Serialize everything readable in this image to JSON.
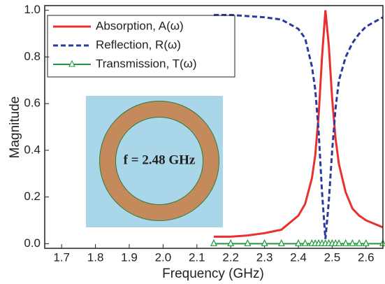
{
  "chart_data": {
    "type": "line",
    "xlabel": "Frequency (GHz)",
    "ylabel": "Magnitude",
    "annotation": "f = 2.48 GHz",
    "x": [
      2.15,
      2.2,
      2.25,
      2.3,
      2.35,
      2.4,
      2.42,
      2.44,
      2.45,
      2.46,
      2.47,
      2.48,
      2.49,
      2.5,
      2.51,
      2.52,
      2.54,
      2.56,
      2.58,
      2.6,
      2.65
    ],
    "series": [
      {
        "name": "Absorption, A(ω)",
        "color": "#e8312f",
        "style": "solid",
        "values": [
          0.03,
          0.03,
          0.035,
          0.045,
          0.06,
          0.12,
          0.17,
          0.28,
          0.38,
          0.55,
          0.8,
          1.0,
          0.85,
          0.62,
          0.45,
          0.34,
          0.22,
          0.15,
          0.12,
          0.1,
          0.07
        ]
      },
      {
        "name": "Reflection, R(ω)",
        "color": "#2b3a9e",
        "style": "dashed",
        "values": [
          0.98,
          0.98,
          0.975,
          0.97,
          0.96,
          0.92,
          0.88,
          0.76,
          0.66,
          0.48,
          0.22,
          0.02,
          0.18,
          0.4,
          0.58,
          0.7,
          0.8,
          0.86,
          0.9,
          0.93,
          0.97
        ]
      },
      {
        "name": "Transmission, T(ω)",
        "color": "#1f9a3a",
        "style": "triangle",
        "values": [
          0,
          0,
          0,
          0,
          0,
          0,
          0,
          0,
          0,
          0,
          0,
          0,
          0,
          0,
          0,
          0,
          0,
          0,
          0,
          0,
          0
        ]
      }
    ],
    "xlim": [
      1.65,
      2.65
    ],
    "ylim": [
      -0.02,
      1.02
    ],
    "xticks": [
      1.7,
      1.8,
      1.9,
      {
        "value": 2.0,
        "label": "2.0"
      },
      2.1,
      2.2,
      2.3,
      2.4,
      2.5,
      2.6
    ],
    "yticks": [
      {
        "value": 0,
        "label": "0.0"
      },
      0.2,
      0.4,
      0.6,
      0.8,
      {
        "value": 1,
        "label": "1.0"
      }
    ]
  }
}
